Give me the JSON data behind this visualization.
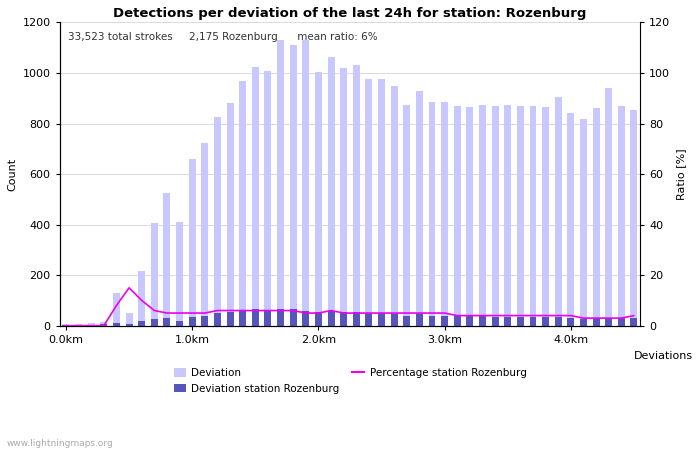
{
  "title": "Detections per deviation of the last 24h for station: Rozenburg",
  "subtitle": "33,523 total strokes     2,175 Rozenburg      mean ratio: 6%",
  "xlabel": "Deviations",
  "ylabel_left": "Count",
  "ylabel_right": "Ratio [%]",
  "x_tick_labels": [
    "0.0km",
    "1.0km",
    "2.0km",
    "3.0km",
    "4.0km"
  ],
  "x_tick_positions": [
    0,
    10,
    20,
    30,
    40
  ],
  "ylim_left": [
    0,
    1200
  ],
  "ylim_right": [
    0,
    120
  ],
  "yticks_left": [
    0,
    200,
    400,
    600,
    800,
    1000,
    1200
  ],
  "yticks_right": [
    0,
    20,
    40,
    60,
    80,
    100,
    120
  ],
  "bar_width": 0.55,
  "total_bars": 46,
  "deviation_total": [
    5,
    8,
    10,
    15,
    130,
    50,
    215,
    405,
    525,
    410,
    660,
    725,
    825,
    880,
    970,
    1025,
    1010,
    1130,
    1110,
    1130,
    1005,
    1065,
    1020,
    1030,
    975,
    975,
    950,
    875,
    930,
    885,
    885,
    870,
    865,
    875,
    870,
    875,
    870,
    870,
    865,
    905,
    840,
    820,
    860,
    940,
    870,
    855
  ],
  "deviation_station": [
    2,
    3,
    4,
    5,
    10,
    8,
    20,
    25,
    30,
    20,
    35,
    40,
    50,
    55,
    60,
    65,
    60,
    65,
    65,
    60,
    55,
    60,
    55,
    55,
    50,
    50,
    45,
    40,
    45,
    40,
    40,
    38,
    38,
    38,
    35,
    35,
    35,
    35,
    33,
    35,
    30,
    28,
    30,
    32,
    30,
    32
  ],
  "percentage_ratio": [
    0,
    0,
    0,
    0,
    8,
    15,
    10,
    6,
    5,
    5,
    5,
    5,
    6,
    6,
    6,
    6,
    6,
    6,
    6,
    5,
    5,
    6,
    5,
    5,
    5,
    5,
    5,
    5,
    5,
    5,
    5,
    4,
    4,
    4,
    4,
    4,
    4,
    4,
    4,
    4,
    4,
    3,
    3,
    3,
    3,
    4
  ],
  "color_deviation": "#c8c8ff",
  "color_deviation_edge": "#b0b0ee",
  "color_station": "#5555bb",
  "color_percentage": "#ee00ee",
  "color_grid": "#cccccc",
  "background_color": "#ffffff",
  "watermark": "www.lightningmaps.org",
  "legend_items": [
    "Deviation",
    "Deviation station Rozenburg",
    "Percentage station Rozenburg"
  ],
  "figsize": [
    7.0,
    4.5
  ],
  "dpi": 100
}
